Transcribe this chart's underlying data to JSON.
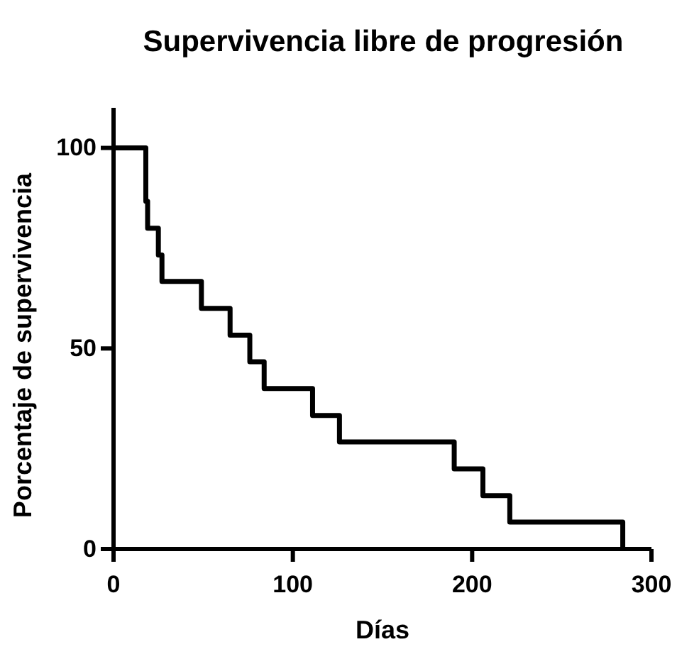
{
  "chart_data": {
    "type": "step",
    "title": "Supervivencia libre de progresión",
    "xlabel": "Días",
    "ylabel": "Porcentaje de supervivencia",
    "x": [
      0,
      18,
      19,
      25,
      27,
      49,
      65,
      76,
      84,
      111,
      126,
      190,
      206,
      221,
      284
    ],
    "values": [
      100,
      86.7,
      80,
      73.3,
      66.7,
      60,
      53.3,
      46.7,
      40,
      33.3,
      26.7,
      20,
      13.3,
      6.7,
      0
    ],
    "color": "#000000",
    "xlim": [
      0,
      300
    ],
    "xticks": [
      0,
      100,
      200,
      300
    ],
    "ylim": [
      0,
      110
    ],
    "yticks": [
      0,
      50,
      100
    ],
    "grid": false,
    "marker": "none",
    "line_style": "solid"
  }
}
